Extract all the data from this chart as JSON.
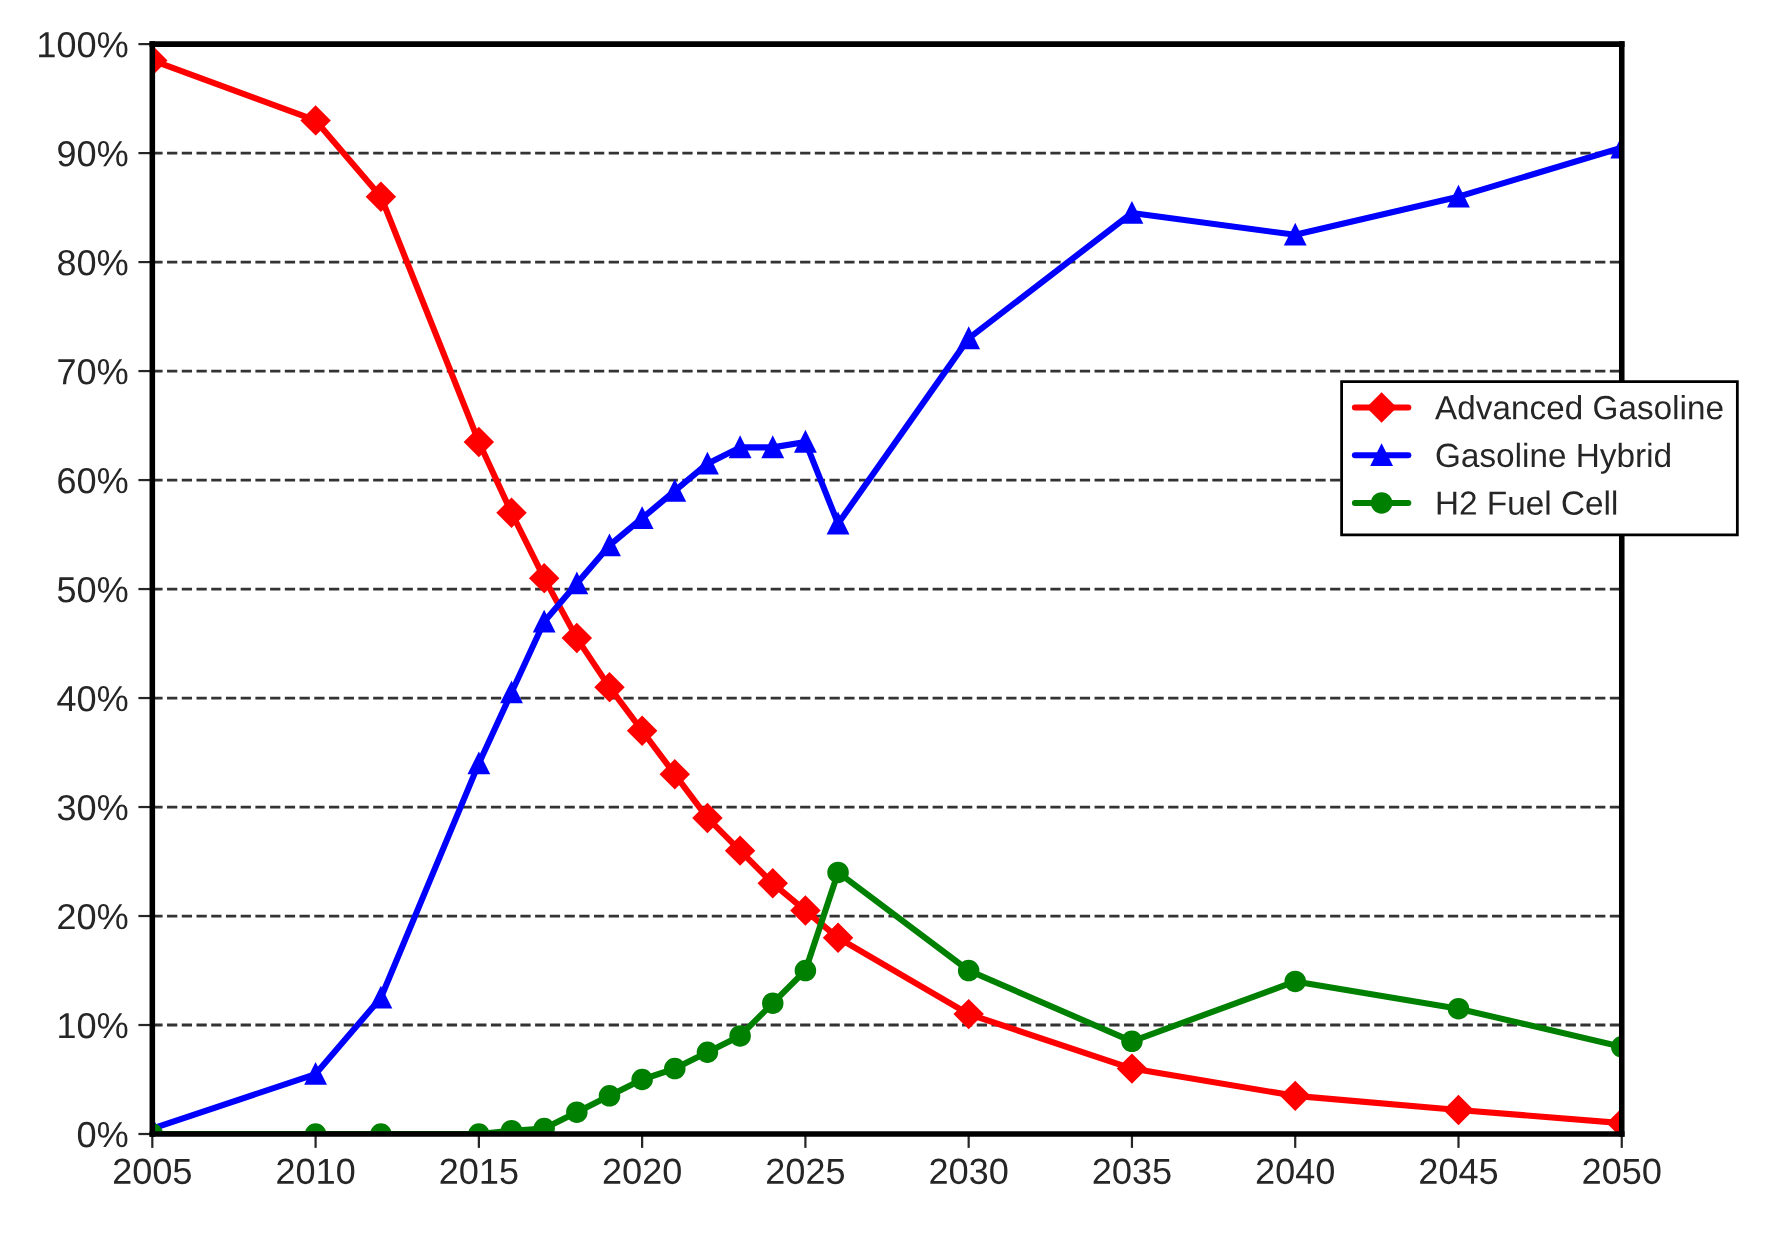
{
  "chart_data": {
    "type": "line",
    "x": [
      2005,
      2010,
      2012,
      2015,
      2016,
      2017,
      2018,
      2019,
      2020,
      2021,
      2022,
      2023,
      2024,
      2025,
      2026,
      2030,
      2035,
      2040,
      2045,
      2050
    ],
    "series": [
      {
        "name": "Advanced Gasoline",
        "color": "#ff0000",
        "marker": "diamond",
        "values": [
          98.5,
          93,
          86,
          63.5,
          57,
          51,
          45.5,
          41,
          37,
          33,
          29,
          26,
          23,
          20.5,
          18,
          11,
          6,
          3.5,
          2.2,
          1
        ]
      },
      {
        "name": "Gasoline Hybrid",
        "color": "#0000ff",
        "marker": "triangle",
        "values": [
          0.5,
          5.5,
          12.5,
          34,
          40.5,
          47,
          50.5,
          54,
          56.5,
          59,
          61.5,
          63,
          63,
          63.5,
          56,
          73,
          84.5,
          82.5,
          86,
          90.5
        ]
      },
      {
        "name": "H2 Fuel Cell",
        "color": "#008000",
        "marker": "circle",
        "values": [
          0,
          0,
          0,
          0,
          0.3,
          0.5,
          2,
          3.5,
          5,
          6,
          7.5,
          9,
          12,
          15,
          24,
          15,
          8.5,
          14,
          11.5,
          8
        ]
      }
    ],
    "xlim": [
      2005,
      2050
    ],
    "xticks": [
      2005,
      2010,
      2015,
      2020,
      2025,
      2030,
      2035,
      2040,
      2045,
      2050
    ],
    "ylim": [
      0,
      100
    ],
    "yticks": [
      {
        "value": 0,
        "label": "0%"
      },
      {
        "value": 10,
        "label": "10%"
      },
      {
        "value": 20,
        "label": "20%"
      },
      {
        "value": 30,
        "label": "30%"
      },
      {
        "value": 40,
        "label": "40%"
      },
      {
        "value": 50,
        "label": "50%"
      },
      {
        "value": 60,
        "label": "60%"
      },
      {
        "value": 70,
        "label": "70%"
      },
      {
        "value": 80,
        "label": "80%"
      },
      {
        "value": 90,
        "label": "90%"
      },
      {
        "value": 100,
        "label": "100%"
      }
    ],
    "grid": "y",
    "legend": "right",
    "line_style": "solid"
  }
}
